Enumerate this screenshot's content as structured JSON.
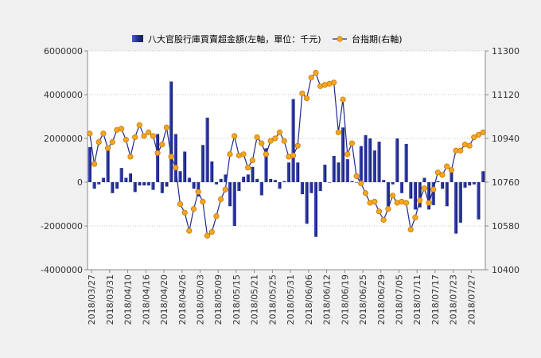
{
  "chart_data": {
    "type": "bar+line",
    "legend": {
      "placement": "top-center",
      "items": [
        {
          "label": "八大官股行庫買賣超金額(左軸，單位：千元)",
          "kind": "bar",
          "color": "#1f2a8c"
        },
        {
          "label": "台指期(右軸)",
          "kind": "line",
          "color": "#1f2a8c",
          "marker_color": "#f5a623"
        }
      ]
    },
    "y_left": {
      "min": -4000000,
      "max": 6000000,
      "ticks": [
        "6000000",
        "4000000",
        "2000000",
        "0",
        "-2000000",
        "-4000000"
      ],
      "tick_values": [
        6000000,
        4000000,
        2000000,
        0,
        -2000000,
        -4000000
      ]
    },
    "y_right": {
      "min": 10400,
      "max": 11300,
      "ticks": [
        "11300",
        "11120",
        "10940",
        "10760",
        "10580",
        "10400"
      ],
      "tick_values": [
        11300,
        11120,
        10940,
        10760,
        10580,
        10400
      ]
    },
    "x_tick_labels": [
      "2018/03/27",
      "2018/03/31",
      "2018/04/10",
      "2018/04/16",
      "2018/04/20",
      "2018/04/26",
      "2018/05/03",
      "2018/05/09",
      "2018/05/15",
      "2018/05/21",
      "2018/05/25",
      "2018/05/31",
      "2018/06/06",
      "2018/06/12",
      "2018/06/19",
      "2018/06/25",
      "2018/06/29",
      "2018/07/05",
      "2018/07/11",
      "2018/07/17",
      "2018/07/23",
      "2018/07/27"
    ],
    "x_tick_step": 6,
    "bar_values": [
      1600000,
      -300000,
      -100000,
      200000,
      1650000,
      -500000,
      -300000,
      650000,
      200000,
      400000,
      -450000,
      -150000,
      -150000,
      -150000,
      -350000,
      2200000,
      -500000,
      -200000,
      4600000,
      2200000,
      500000,
      1400000,
      200000,
      -300000,
      -650000,
      1700000,
      2950000,
      950000,
      -100000,
      150000,
      350000,
      -1100000,
      -2000000,
      -400000,
      250000,
      350000,
      700000,
      150000,
      -600000,
      1550000,
      150000,
      100000,
      -300000,
      50000,
      900000,
      3800000,
      900000,
      -550000,
      -1900000,
      -500000,
      -2500000,
      -400000,
      800000,
      0,
      1200000,
      900000,
      2500000,
      1050000,
      50000,
      0,
      1650000,
      2150000,
      2000000,
      1450000,
      1850000,
      100000,
      -1300000,
      -100000,
      2000000,
      -500000,
      1750000,
      -750000,
      -1250000,
      -1150000,
      200000,
      -1250000,
      -1050000,
      50000,
      -300000,
      -1100000,
      500000,
      -2350000,
      -1850000,
      -250000,
      -150000,
      -100000,
      -1700000,
      500000
    ],
    "line_values": [
      10960,
      10835,
      10925,
      10960,
      10900,
      10925,
      10975,
      10980,
      10935,
      10865,
      10945,
      10995,
      10950,
      10965,
      10950,
      10880,
      10915,
      10985,
      10865,
      10820,
      10670,
      10635,
      10560,
      10650,
      10720,
      10680,
      10540,
      10555,
      10620,
      10690,
      10730,
      10875,
      10950,
      10870,
      10875,
      10820,
      10850,
      10945,
      10920,
      10875,
      10930,
      10940,
      10965,
      10930,
      10865,
      10870,
      10910,
      11125,
      11105,
      11190,
      11210,
      11155,
      11160,
      11165,
      11170,
      10965,
      11100,
      10875,
      10920,
      10785,
      10755,
      10715,
      10675,
      10680,
      10640,
      10605,
      10650,
      10705,
      10675,
      10680,
      10675,
      10565,
      10615,
      10685,
      10735,
      10675,
      10730,
      10800,
      10790,
      10825,
      10810,
      10890,
      10890,
      10915,
      10910,
      10945,
      10955,
      10965
    ]
  }
}
